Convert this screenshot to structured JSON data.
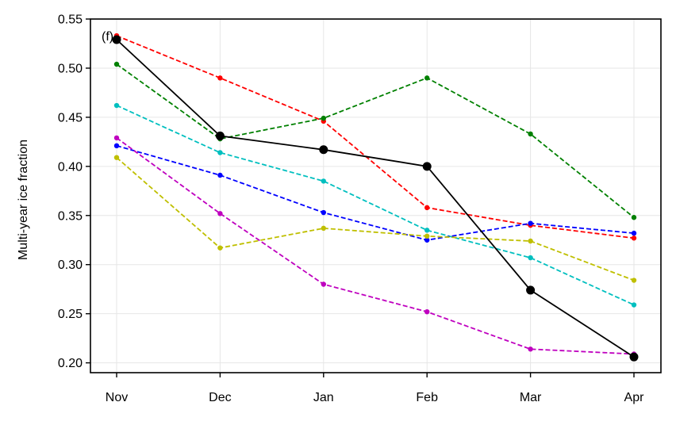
{
  "chart_data": {
    "type": "line",
    "panel_label": "(f)",
    "title": "",
    "xlabel": "",
    "ylabel": "Multi-year ice fraction",
    "categories": [
      "Nov",
      "Dec",
      "Jan",
      "Feb",
      "Mar",
      "Apr"
    ],
    "ylim": [
      0.19,
      0.55
    ],
    "yticks": [
      0.2,
      0.25,
      0.3,
      0.35,
      0.4,
      0.45,
      0.5,
      0.55
    ],
    "ytick_labels": [
      "0.20",
      "0.25",
      "0.30",
      "0.35",
      "0.40",
      "0.45",
      "0.50",
      "0.55"
    ],
    "grid": true,
    "legend": false,
    "series": [
      {
        "color": "#ff0000",
        "style": "dashed",
        "values": [
          0.533,
          0.49,
          0.446,
          0.358,
          0.34,
          0.327
        ]
      },
      {
        "color": "#008000",
        "style": "dashed",
        "values": [
          0.504,
          0.428,
          0.449,
          0.49,
          0.433,
          0.348
        ]
      },
      {
        "color": "#00bfbf",
        "style": "dashed",
        "values": [
          0.462,
          0.414,
          0.385,
          0.335,
          0.307,
          0.259
        ]
      },
      {
        "color": "#0000ff",
        "style": "dashed",
        "values": [
          0.421,
          0.391,
          0.353,
          0.325,
          0.342,
          0.332
        ]
      },
      {
        "color": "#bf00bf",
        "style": "dashed",
        "values": [
          0.429,
          0.352,
          0.28,
          0.252,
          0.214,
          0.209
        ]
      },
      {
        "color": "#bfbf00",
        "style": "dashed",
        "values": [
          0.409,
          0.317,
          0.337,
          0.329,
          0.324,
          0.284
        ]
      },
      {
        "color": "#000000",
        "style": "solid",
        "values": [
          0.529,
          0.431,
          0.417,
          0.4,
          0.274,
          0.206
        ]
      }
    ]
  }
}
